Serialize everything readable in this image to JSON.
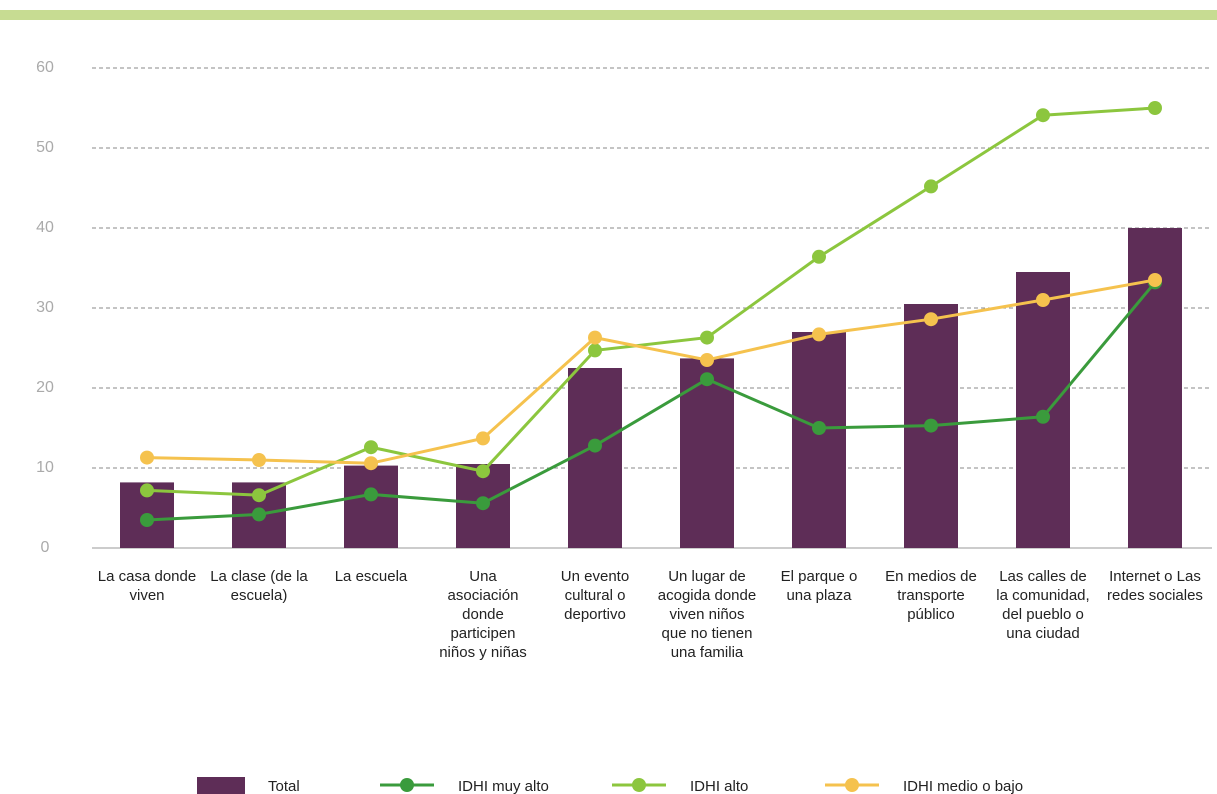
{
  "chart_data": {
    "type": "bar_line",
    "categories": [
      "La casa donde viven",
      "La clase (de la escuela)",
      "La escuela",
      "Una asociación donde participen niños y niñas",
      "Un evento cultural o deportivo",
      "Un lugar de acogida donde viven niños que no tienen una familia",
      "El parque o una plaza",
      "En medios de transporte público",
      "Las calles de la comunidad, del pueblo o una ciudad",
      "Internet o Las redes sociales"
    ],
    "series": [
      {
        "name": "Total",
        "type": "bar",
        "color": "#5e2d57",
        "values": [
          8.2,
          8.2,
          10.3,
          10.5,
          22.5,
          23.7,
          27,
          30.5,
          34.5,
          40
        ]
      },
      {
        "name": "IDHI muy alto",
        "type": "line",
        "color": "#3a9b3c",
        "values": [
          3.5,
          4.2,
          6.7,
          5.6,
          12.8,
          21.1,
          15,
          15.3,
          16.4,
          33.2
        ]
      },
      {
        "name": "IDHI alto",
        "type": "line",
        "color": "#8cc63e",
        "values": [
          7.2,
          6.6,
          12.6,
          9.6,
          24.7,
          26.3,
          36.4,
          45.2,
          54.1,
          55
        ]
      },
      {
        "name": "IDHI medio o bajo",
        "type": "line",
        "color": "#f5c24e",
        "values": [
          11.3,
          11,
          10.6,
          13.7,
          26.3,
          23.5,
          26.7,
          28.6,
          31,
          33.5
        ]
      }
    ],
    "ylim": [
      0,
      60
    ],
    "yticks": [
      0,
      10,
      20,
      30,
      40,
      50,
      60
    ],
    "grid": true
  }
}
